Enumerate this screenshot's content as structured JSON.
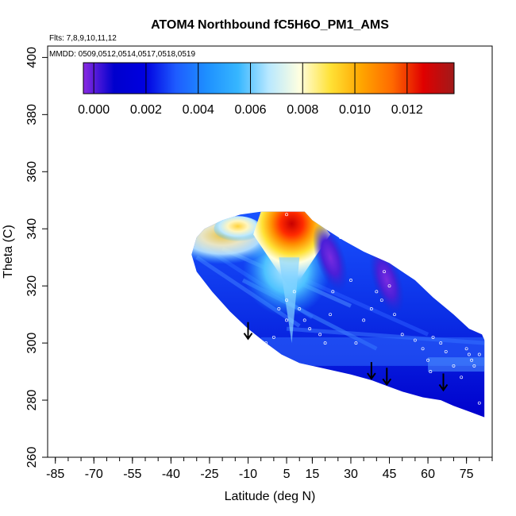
{
  "chart_data": {
    "type": "heatmap",
    "title": "ATOM4 Northbound fC5H6O_PM1_AMS",
    "annotations": {
      "flights": "Flts: 7,8,9,10,11,12",
      "dates": "MMDD: 0509,0512,0514,0517,0518,0519"
    },
    "xlabel": "Latitude (deg N)",
    "ylabel": "Theta (C)",
    "xlim": [
      -88,
      85
    ],
    "ylim": [
      260,
      404
    ],
    "x_ticks": [
      -85,
      -70,
      -55,
      -40,
      -25,
      -10,
      5,
      15,
      30,
      45,
      60,
      75
    ],
    "x_minor_ticks": [
      -85,
      -80,
      -75,
      -70,
      -65,
      -60,
      -55,
      -50,
      -45,
      -40,
      -35,
      -30,
      -25,
      -20,
      -15,
      -10,
      -5,
      0,
      5,
      10,
      15,
      20,
      25,
      30,
      35,
      40,
      45,
      50,
      55,
      60,
      65,
      70,
      75,
      80,
      85
    ],
    "y_ticks": [
      260,
      280,
      300,
      320,
      340,
      360,
      380,
      400
    ],
    "colorbar": {
      "range": [
        -0.0004,
        0.0138
      ],
      "ticks": [
        "0.000",
        "0.002",
        "0.004",
        "0.006",
        "0.008",
        "0.010",
        "0.012"
      ],
      "tick_values": [
        0,
        0.002,
        0.004,
        0.006,
        0.008,
        0.01,
        0.012
      ],
      "colors": [
        "#8a2be2",
        "#0000cd",
        "#0000e0",
        "#1e5cff",
        "#1e90ff",
        "#36b6ff",
        "#b8e8ff",
        "#ffffe0",
        "#ffe135",
        "#ffa500",
        "#ff6a00",
        "#e00000",
        "#a01a1a"
      ]
    },
    "field_boundary": {
      "upper": [
        [
          -30,
          337
        ],
        [
          -27,
          340
        ],
        [
          -20,
          343
        ],
        [
          -13,
          345
        ],
        [
          -5,
          346
        ],
        [
          12,
          346
        ],
        [
          15,
          343
        ],
        [
          20,
          340
        ],
        [
          27,
          336
        ],
        [
          35,
          332
        ],
        [
          45,
          328
        ],
        [
          55,
          322
        ],
        [
          62,
          316
        ],
        [
          70,
          310
        ],
        [
          76,
          305
        ],
        [
          81,
          303
        ],
        [
          82,
          301
        ]
      ],
      "lower": [
        [
          82,
          274
        ],
        [
          76,
          276
        ],
        [
          70,
          278
        ],
        [
          65,
          280
        ],
        [
          58,
          281
        ],
        [
          50,
          283
        ],
        [
          44,
          285
        ],
        [
          38,
          287
        ],
        [
          30,
          289
        ],
        [
          20,
          291
        ],
        [
          10,
          293
        ],
        [
          3,
          296
        ],
        [
          -3,
          300
        ],
        [
          -10,
          305
        ],
        [
          -17,
          311
        ],
        [
          -24,
          318
        ],
        [
          -30,
          325
        ],
        [
          -32,
          331
        ]
      ]
    },
    "features": [
      {
        "kind": "high",
        "center": [
          8,
          340
        ],
        "value": 0.0125
      },
      {
        "kind": "moderate",
        "center": [
          -14,
          340
        ],
        "value": 0.0085
      },
      {
        "kind": "light",
        "center": [
          -20,
          336
        ],
        "value": 0.006
      },
      {
        "kind": "enhanced",
        "center": [
          5,
          326
        ],
        "value": 0.0055
      },
      {
        "kind": "low",
        "center": [
          22,
          330
        ],
        "value": 0.0007
      },
      {
        "kind": "low",
        "center": [
          44,
          322
        ],
        "value": 0.001
      }
    ],
    "sample_points": [
      [
        2,
        312
      ],
      [
        5,
        308
      ],
      [
        5,
        315
      ],
      [
        8,
        318
      ],
      [
        10,
        312
      ],
      [
        12,
        308
      ],
      [
        14,
        305
      ],
      [
        18,
        303
      ],
      [
        20,
        300
      ],
      [
        22,
        310
      ],
      [
        23,
        318
      ],
      [
        26,
        337
      ],
      [
        30,
        322
      ],
      [
        32,
        300
      ],
      [
        35,
        308
      ],
      [
        38,
        312
      ],
      [
        40,
        318
      ],
      [
        42,
        315
      ],
      [
        43,
        325
      ],
      [
        45,
        320
      ],
      [
        47,
        310
      ],
      [
        50,
        303
      ],
      [
        55,
        301
      ],
      [
        58,
        298
      ],
      [
        60,
        294
      ],
      [
        61,
        290
      ],
      [
        62,
        302
      ],
      [
        65,
        300
      ],
      [
        67,
        297
      ],
      [
        70,
        292
      ],
      [
        73,
        288
      ],
      [
        75,
        298
      ],
      [
        76,
        296
      ],
      [
        77,
        294
      ],
      [
        78,
        292
      ],
      [
        80,
        296
      ],
      [
        80,
        279
      ],
      [
        5,
        345
      ],
      [
        0,
        302
      ],
      [
        -3,
        300
      ]
    ],
    "arrows": [
      {
        "lat": -10,
        "theta": 304
      },
      {
        "lat": 38,
        "theta": 290
      },
      {
        "lat": 44,
        "theta": 288
      },
      {
        "lat": 66,
        "theta": 286
      }
    ]
  }
}
